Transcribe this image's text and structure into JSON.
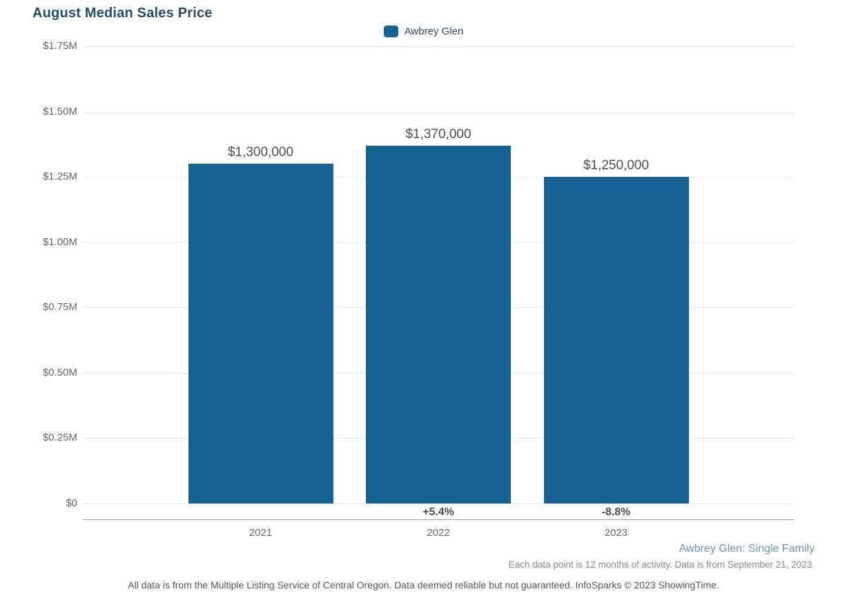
{
  "page": {
    "title": "August Median Sales Price",
    "legend": {
      "label": "Awbrey Glen"
    },
    "footer": {
      "series_note": "Awbrey Glen: Single Family",
      "data_note": "Each data point is 12 months of activity. Data is from September 21, 2023.",
      "disclaimer": "All data is from the Multiple Listing Service of Central Oregon. Data deemed reliable but not guaranteed. InfoSparks © 2023 ShowingTime."
    }
  },
  "chart_data": {
    "type": "bar",
    "title": "August Median Sales Price",
    "categories": [
      "2021",
      "2022",
      "2023"
    ],
    "series": [
      {
        "name": "Awbrey Glen",
        "values": [
          1300000,
          1370000,
          1250000
        ],
        "value_labels": [
          "$1,300,000",
          "$1,370,000",
          "$1,250,000"
        ],
        "pct_change_labels": [
          "",
          "+5.4%",
          "-8.8%"
        ],
        "color": "#166293"
      }
    ],
    "xlabel": "",
    "ylabel": "",
    "ylim": [
      0,
      1750000
    ],
    "yticks": [
      {
        "value": 0,
        "label": "$0"
      },
      {
        "value": 250000,
        "label": "$0.25M"
      },
      {
        "value": 500000,
        "label": "$0.50M"
      },
      {
        "value": 750000,
        "label": "$0.75M"
      },
      {
        "value": 1000000,
        "label": "$1.00M"
      },
      {
        "value": 1250000,
        "label": "$1.25M"
      },
      {
        "value": 1500000,
        "label": "$1.50M"
      },
      {
        "value": 1750000,
        "label": "$1.75M"
      }
    ],
    "grid": "horizontal",
    "legend_position": "top-center",
    "colors": {
      "bar": "#166293",
      "title": "#254a70",
      "grid_line": "#e6e6e6",
      "axis_line": "#999999",
      "value_label": "#4d4d4d",
      "tick_label": "#666666",
      "series_note": "#6b90ba",
      "footnote": "#888888",
      "disclaimer": "#555555"
    }
  }
}
